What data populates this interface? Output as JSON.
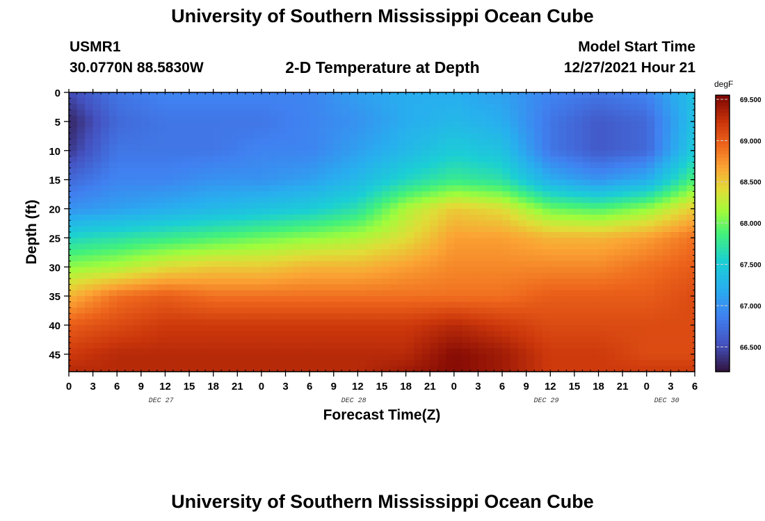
{
  "header": {
    "title": "University of Southern Mississippi Ocean Cube",
    "station_id": "USMR1",
    "station_coords": "30.0770N  88.5830W",
    "subtitle": "2-D Temperature at Depth",
    "model_label": "Model Start Time",
    "model_time": "12/27/2021 Hour 21"
  },
  "footer": {
    "title": "University of Southern Mississippi Ocean Cube"
  },
  "chart_data": {
    "type": "heatmap",
    "xlabel": "Forecast Time(Z)",
    "ylabel": "Depth (ft)",
    "xlim": [
      0,
      78
    ],
    "ylim": [
      0,
      48
    ],
    "x_ticks": [
      0,
      3,
      6,
      9,
      12,
      15,
      18,
      21,
      24,
      27,
      30,
      33,
      36,
      39,
      42,
      45,
      48,
      51,
      54,
      57,
      60,
      63,
      66,
      69,
      72,
      75,
      78
    ],
    "x_tick_labels": [
      "0",
      "3",
      "6",
      "9",
      "12",
      "15",
      "18",
      "21",
      "0",
      "3",
      "6",
      "9",
      "12",
      "15",
      "18",
      "21",
      "0",
      "3",
      "6",
      "9",
      "12",
      "15",
      "18",
      "21",
      "0",
      "3",
      "6"
    ],
    "day_labels": [
      {
        "label": "DEC 27",
        "hour": 11.5
      },
      {
        "label": "DEC 28",
        "hour": 35.5
      },
      {
        "label": "DEC 29",
        "hour": 59.5
      },
      {
        "label": "DEC 30",
        "hour": 74.5
      }
    ],
    "y_ticks": [
      0,
      5,
      10,
      15,
      20,
      25,
      30,
      35,
      40,
      45
    ],
    "y_tick_labels": [
      "0",
      "5",
      "10",
      "15",
      "20",
      "25",
      "30",
      "35",
      "40",
      "45"
    ],
    "colorbar": {
      "unit": "degF",
      "min": 66.2,
      "max": 69.55,
      "ticks": [
        69.5,
        69.0,
        68.5,
        68.0,
        67.5,
        67.0,
        66.5
      ],
      "tick_labels": [
        "69.500",
        "69.000",
        "68.500",
        "68.000",
        "67.500",
        "67.000",
        "66.500"
      ]
    },
    "temperature_degF": {
      "x_hours": [
        0,
        6,
        12,
        18,
        24,
        30,
        36,
        42,
        48,
        54,
        60,
        66,
        72,
        78
      ],
      "depth_ft": [
        0,
        5,
        10,
        15,
        20,
        25,
        30,
        35,
        40,
        45,
        48
      ],
      "values": [
        [
          66.5,
          66.8,
          66.9,
          66.9,
          66.9,
          66.9,
          67.1,
          67.2,
          67.2,
          67.1,
          66.9,
          66.8,
          66.9,
          67.4
        ],
        [
          66.3,
          66.7,
          66.8,
          66.8,
          66.8,
          66.9,
          67.0,
          67.2,
          67.3,
          67.2,
          66.8,
          66.6,
          66.7,
          67.4
        ],
        [
          66.4,
          66.8,
          66.8,
          66.8,
          66.9,
          66.9,
          67.1,
          67.3,
          67.5,
          67.4,
          66.8,
          66.6,
          66.7,
          67.5
        ],
        [
          66.7,
          66.9,
          66.9,
          67.0,
          67.0,
          67.1,
          67.3,
          67.6,
          67.8,
          67.7,
          67.2,
          67.0,
          67.2,
          67.9
        ],
        [
          67.0,
          67.1,
          67.2,
          67.3,
          67.4,
          67.5,
          67.7,
          68.2,
          68.5,
          68.4,
          68.0,
          67.9,
          68.1,
          68.5
        ],
        [
          67.6,
          67.7,
          67.8,
          67.9,
          68.0,
          68.1,
          68.2,
          68.4,
          68.7,
          68.7,
          68.6,
          68.6,
          68.7,
          68.9
        ],
        [
          68.1,
          68.2,
          68.4,
          68.5,
          68.5,
          68.6,
          68.6,
          68.7,
          68.8,
          68.8,
          68.8,
          68.8,
          68.9,
          69.0
        ],
        [
          68.6,
          68.9,
          69.0,
          68.9,
          68.9,
          68.9,
          68.9,
          68.9,
          68.9,
          68.9,
          69.0,
          69.0,
          69.0,
          69.1
        ],
        [
          69.0,
          69.1,
          69.2,
          69.2,
          69.2,
          69.2,
          69.2,
          69.2,
          69.3,
          69.2,
          69.1,
          69.1,
          69.1,
          69.1
        ],
        [
          69.2,
          69.3,
          69.3,
          69.3,
          69.3,
          69.3,
          69.3,
          69.3,
          69.5,
          69.4,
          69.2,
          69.2,
          69.1,
          69.1
        ],
        [
          69.3,
          69.3,
          69.3,
          69.3,
          69.3,
          69.3,
          69.3,
          69.4,
          69.5,
          69.4,
          69.2,
          69.2,
          69.2,
          69.2
        ]
      ]
    }
  }
}
